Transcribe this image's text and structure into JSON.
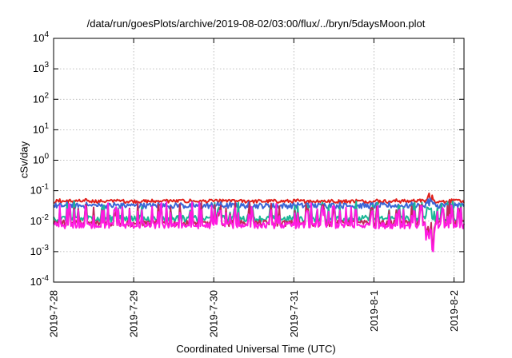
{
  "chart_data": {
    "type": "line",
    "title": "/data/run/goesPlots/archive/2019-08-02/03:00/flux/../bryn/5daysMoon.plot",
    "xlabel": "Coordinated Universal Time (UTC)",
    "ylabel": "cSv/day",
    "yscale": "log",
    "ylim": [
      0.0001,
      10000
    ],
    "y_ticks": [
      {
        "base": "10",
        "exp": "-4"
      },
      {
        "base": "10",
        "exp": "-3"
      },
      {
        "base": "10",
        "exp": "-2"
      },
      {
        "base": "10",
        "exp": "-1"
      },
      {
        "base": "10",
        "exp": "0"
      },
      {
        "base": "10",
        "exp": "1"
      },
      {
        "base": "10",
        "exp": "2"
      },
      {
        "base": "10",
        "exp": "3"
      },
      {
        "base": "10",
        "exp": "4"
      }
    ],
    "x_dates": [
      "2019-07-28",
      "2019-08-02 03:00"
    ],
    "x_ticks": [
      "2019-7-28",
      "2019-7-29",
      "2019-7-30",
      "2019-7-31",
      "2019-8-1",
      "2019-8-2"
    ],
    "grid": true,
    "legend": "none",
    "series": [
      {
        "color": "#e0201b",
        "base": 0.045,
        "var": 0.12,
        "spikes": 0.02
      },
      {
        "color": "#3a65d6",
        "base": 0.032,
        "var": 0.18,
        "spikes": 0.03
      },
      {
        "color": "#1ab796",
        "base": 0.012,
        "var": 0.22,
        "spikes": 0.35
      },
      {
        "color": "#c0295a",
        "base": 0.0085,
        "var": 0.2,
        "spikes": 0.45
      },
      {
        "color": "#ff1ae0",
        "base": 0.0072,
        "var": 0.2,
        "spikes": 0.5
      }
    ]
  }
}
